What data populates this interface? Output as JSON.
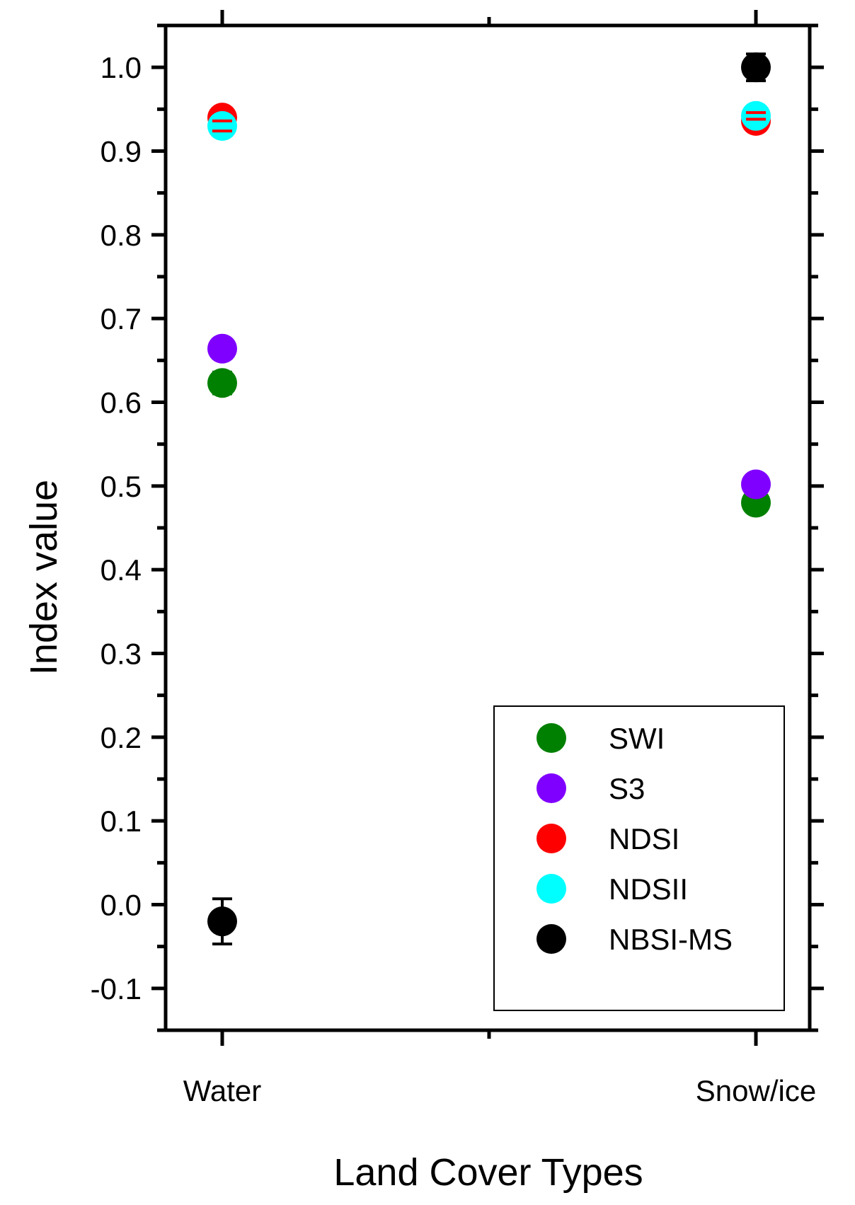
{
  "chart_data": {
    "type": "scatter",
    "xlabel": "Land Cover Types",
    "ylabel": "Index value",
    "categories": [
      "Water",
      "Snow/ice"
    ],
    "ylim": [
      -0.15,
      1.05
    ],
    "yticks": [
      "-0.1",
      "0.0",
      "0.1",
      "0.2",
      "0.3",
      "0.4",
      "0.5",
      "0.6",
      "0.7",
      "0.8",
      "0.9",
      "1.0"
    ],
    "grid": false,
    "legend_position": "bottom-right",
    "series": [
      {
        "name": "SWI",
        "color": "#008000",
        "values": [
          0.623,
          0.48
        ],
        "errors": [
          0.013,
          0.008
        ]
      },
      {
        "name": "S3",
        "color": "#8000ff",
        "values": [
          0.664,
          0.502
        ],
        "errors": [
          0.01,
          0.006
        ]
      },
      {
        "name": "NDSI",
        "color": "#ff0000",
        "values": [
          0.94,
          0.936
        ],
        "errors": [
          0.006,
          0.004
        ]
      },
      {
        "name": "NDSII",
        "color": "#00ffff",
        "values": [
          0.93,
          0.942
        ],
        "errors": [
          0.006,
          0.004
        ]
      },
      {
        "name": "NBSI-MS",
        "color": "#000000",
        "values": [
          -0.02,
          1.0
        ],
        "errors": [
          0.027,
          0.016
        ]
      }
    ]
  }
}
